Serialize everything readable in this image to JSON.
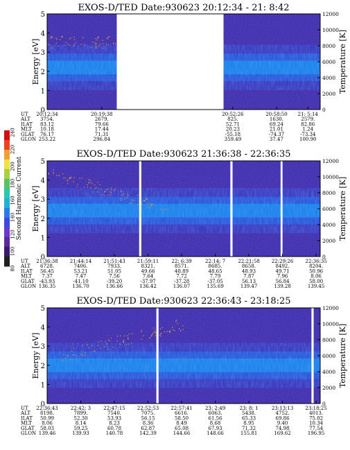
{
  "colors": {
    "background": "#3a2aa8",
    "band_core": "#1a8ef0",
    "band_mid": "#2b5fe0",
    "band_edge": "#3b3fc8",
    "gap": "#ffffff",
    "colorbar": [
      "#202020",
      "#3a1a6a",
      "#5a2a9a",
      "#6a3ad0",
      "#3a4ae0",
      "#2a7ae8",
      "#22b0d8",
      "#2ac8b0",
      "#5ac060",
      "#a8d040",
      "#f0e040",
      "#f0a030",
      "#f04020",
      "#d01010"
    ]
  },
  "colorbar": {
    "label": "Second Harmonic Current",
    "ticks": [
      "80",
      "100",
      "120",
      "140",
      "160",
      "180",
      "200",
      "220",
      "240"
    ]
  },
  "orbit_labels": [
    "UT",
    "ALT",
    "ILAT",
    "MLT",
    "GLAT",
    "GLON"
  ],
  "chart_data": [
    {
      "type": "heatmap",
      "title": "EXOS-D/TED   Date:930623   20:12:34 - 21: 8:42",
      "ylabel": "Energy [eV]",
      "ylabel_right": "Temperature [K]",
      "ylim": [
        0,
        5
      ],
      "yticks": [
        "0",
        "1",
        "2",
        "3",
        "4",
        "5"
      ],
      "ylim_right": [
        0,
        12000
      ],
      "yticks_right": [
        "0",
        "2000",
        "4000",
        "6000",
        "8000",
        "10000",
        "12000"
      ],
      "data_gaps_fraction": [
        [
          0.255,
          0.646
        ]
      ],
      "band_center_eV": 2.2,
      "orbit_columns": [
        {
          "UT": "20:12:34",
          "ALT": "3754.",
          "ILAT": "83.12",
          "MLT": "10.18",
          "GLAT": "76.17",
          "GLON": "253.22"
        },
        {
          "UT": "20:19:38",
          "ALT": "2679.",
          "ILAT": "79.66",
          "MLT": "17.44",
          "GLAT": "71.31",
          "GLON": "296.84"
        },
        {
          "UT": "20:52:26",
          "ALT": "825.",
          "ILAT": "52.71",
          "MLT": "20.23",
          "GLAT": "-55.18",
          "GLON": "359.49"
        },
        {
          "UT": "20:58:50",
          "ALT": "1630.",
          "ILAT": "69.24",
          "MLT": "21.01",
          "GLAT": "-74.37",
          "GLON": "37.47"
        },
        {
          "UT": "21: 5:14",
          "ALT": "2579.",
          "ILAT": "82.86",
          "MLT": "1.24",
          "GLAT": "-73.34",
          "GLON": "100.90"
        }
      ]
    },
    {
      "type": "heatmap",
      "title": "EXOS-D/TED   Date:930623   21:36:38 - 22:36:35",
      "ylabel": "Energy [eV]",
      "ylabel_right": "Temperature [K]",
      "ylim": [
        0,
        5
      ],
      "yticks": [
        "0",
        "1",
        "2",
        "3",
        "4",
        "5"
      ],
      "ylim_right": [
        0,
        12000
      ],
      "yticks_right": [
        "0",
        "2000",
        "4000",
        "6000",
        "8000",
        "10000",
        "12000"
      ],
      "data_gaps_fraction": [
        [
          0.337,
          0.345
        ],
        [
          0.671,
          0.679
        ],
        [
          0.855,
          0.862
        ]
      ],
      "band_center_eV": 2.4,
      "orbit_columns": [
        {
          "UT": "21:36:38",
          "ALT": "6728.",
          "ILAT": "56.45",
          "MLT": "7.37",
          "GLAT": "-43.93",
          "GLON": "136.35"
        },
        {
          "UT": "21:44:14",
          "ALT": "7406.",
          "ILAT": "53.21",
          "MLT": "7.47",
          "GLAT": "-41.10",
          "GLON": "136.70"
        },
        {
          "UT": "21:51:43",
          "ALT": "7933.",
          "ILAT": "51.05",
          "MLT": "7.56",
          "GLAT": "-39.20",
          "GLON": "136.66"
        },
        {
          "UT": "21:59:11",
          "ALT": "8321.",
          "ILAT": "49.66",
          "MLT": "7.64",
          "GLAT": "-37.97",
          "GLON": "136.42"
        },
        {
          "UT": "22: 6:39",
          "ALT": "8571.",
          "ILAT": "48.89",
          "MLT": "7.72",
          "GLAT": "-37.28",
          "GLON": "136.07"
        },
        {
          "UT": "22:14: 7",
          "ALT": "8685.",
          "ILAT": "48.65",
          "MLT": "7.79",
          "GLAT": "-37.05",
          "GLON": "135.69"
        },
        {
          "UT": "22:21:58",
          "ALT": "8658.",
          "ILAT": "48.93",
          "MLT": "7.87",
          "GLAT": "56.13",
          "GLON": "139.47"
        },
        {
          "UT": "22:29:26",
          "ALT": "8492.",
          "ILAT": "49.71",
          "MLT": "7.96",
          "GLAT": "56.84",
          "GLON": "139.28"
        },
        {
          "UT": "22:36:35",
          "ALT": "8204.",
          "ILAT": "50.96",
          "MLT": "8.06",
          "GLAT": "58.00",
          "GLON": "139.45"
        }
      ]
    },
    {
      "type": "heatmap",
      "title": "EXOS-D/TED   Date:930623   22:36:43 - 23:18:25",
      "ylabel": "Energy [eV]",
      "ylabel_right": "Temperature [K]",
      "ylim": [
        0,
        5
      ],
      "yticks": [
        "0",
        "1",
        "2",
        "3",
        "4",
        "5"
      ],
      "ylim_right": [
        0,
        12000
      ],
      "yticks_right": [
        "0",
        "2000",
        "4000",
        "6000",
        "8000",
        "10000",
        "12000"
      ],
      "data_gaps_fraction": [
        [
          0.4,
          0.408
        ],
        [
          0.968,
          0.976
        ]
      ],
      "band_center_eV": 2.0,
      "orbit_columns": [
        {
          "UT": "22:36:43",
          "ALT": "8198.",
          "ILAT": "50.99",
          "MLT": "8.06",
          "GLAT": "58.03",
          "GLON": "139.46"
        },
        {
          "UT": "22:42: 3",
          "ALT": "7899.",
          "ILAT": "52.30",
          "MLT": "8.14",
          "GLAT": "59.25",
          "GLON": "139.93"
        },
        {
          "UT": "22:47:15",
          "ALT": "7540.",
          "ILAT": "53.93",
          "MLT": "8.23",
          "GLAT": "60.78",
          "GLON": "140.78"
        },
        {
          "UT": "22:52:53",
          "ALT": "7075.",
          "ILAT": "56.15",
          "MLT": "8.36",
          "GLAT": "62.87",
          "GLON": "142.39"
        },
        {
          "UT": "22:57:41",
          "ALT": "6616.",
          "ILAT": "58.50",
          "MLT": "8.49",
          "GLAT": "65.08",
          "GLON": "144.66"
        },
        {
          "UT": "23: 2:49",
          "ALT": "6063.",
          "ILAT": "61.56",
          "MLT": "8.68",
          "GLAT": "67.93",
          "GLON": "148.66"
        },
        {
          "UT": "23: 8: 1",
          "ALT": "5438.",
          "ILAT": "65.33",
          "MLT": "8.95",
          "GLAT": "71.32",
          "GLON": "155.81"
        },
        {
          "UT": "23:13:13",
          "ALT": "4752.",
          "ILAT": "69.86",
          "MLT": "9.40",
          "GLAT": "74.98",
          "GLON": "169.62"
        },
        {
          "UT": "23:18:25",
          "ALT": "4013.",
          "ILAT": "75.02",
          "MLT": "10.34",
          "GLAT": "77.54",
          "GLON": "196.95"
        }
      ]
    }
  ]
}
